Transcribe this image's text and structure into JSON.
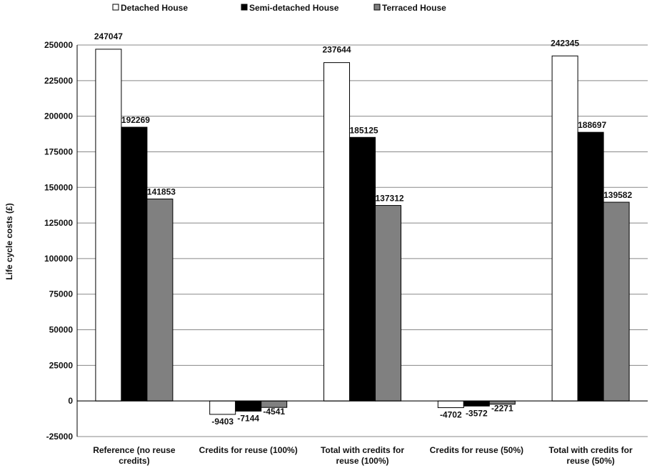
{
  "chart_data": {
    "type": "bar",
    "title": "",
    "xlabel": "",
    "ylabel": "Life cycle costs (£)",
    "ylim": [
      -25000,
      250000
    ],
    "ytick_step": 25000,
    "grid": true,
    "legend_position": "top",
    "categories": [
      [
        "Reference (no reuse",
        "credits)"
      ],
      [
        "Credits for reuse (100%)"
      ],
      [
        "Total with credits for",
        "reuse (100%)"
      ],
      [
        "Credits for reuse (50%)"
      ],
      [
        "Total with credits for",
        "reuse (50%)"
      ]
    ],
    "series": [
      {
        "name": "Detached House",
        "color": "#ffffff",
        "values": [
          247047,
          -9403,
          237644,
          -4702,
          242345
        ]
      },
      {
        "name": "Semi-detached House",
        "color": "#000000",
        "values": [
          192269,
          -7144,
          185125,
          -3572,
          188697
        ]
      },
      {
        "name": "Terraced House",
        "color": "#808080",
        "values": [
          141853,
          -4541,
          137312,
          -2271,
          139582
        ]
      }
    ]
  }
}
